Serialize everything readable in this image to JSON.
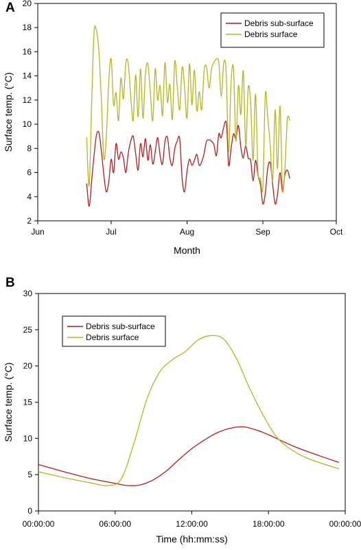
{
  "chart_data": [
    {
      "panel": "A",
      "type": "line",
      "xlabel": "Month",
      "ylabel": "Surface temp. (°C)",
      "x_tick_labels": [
        "Jun",
        "Jul",
        "Aug",
        "Sep",
        "Oct"
      ],
      "x_ticks": [
        "2010-06-01",
        "2010-07-01",
        "2010-08-01",
        "2010-09-01",
        "2010-10-01"
      ],
      "xlim": [
        "2010-06-01",
        "2010-10-01"
      ],
      "ylim": [
        2,
        20
      ],
      "y_ticks": [
        2,
        4,
        6,
        8,
        10,
        12,
        14,
        16,
        18,
        20
      ],
      "grid": false,
      "legend_position": "top-right",
      "series": [
        {
          "name": "Debris sub-surface",
          "color": "#b01c1c",
          "points": [
            [
              "2010-06-21",
              5.1
            ],
            [
              "2010-06-22",
              3.2
            ],
            [
              "2010-06-23",
              5.2
            ],
            [
              "2010-06-24",
              7.4
            ],
            [
              "2010-06-25",
              9.1
            ],
            [
              "2010-06-26",
              9.3
            ],
            [
              "2010-06-27",
              7.8
            ],
            [
              "2010-06-28",
              5.8
            ],
            [
              "2010-06-29",
              4.4
            ],
            [
              "2010-06-30",
              5.2
            ],
            [
              "2010-07-01",
              7.1
            ],
            [
              "2010-07-02",
              6.0
            ],
            [
              "2010-07-03",
              8.4
            ],
            [
              "2010-07-04",
              7.1
            ],
            [
              "2010-07-05",
              7.7
            ],
            [
              "2010-07-06",
              7.2
            ],
            [
              "2010-07-07",
              6.0
            ],
            [
              "2010-07-08",
              7.6
            ],
            [
              "2010-07-09",
              8.6
            ],
            [
              "2010-07-10",
              9.0
            ],
            [
              "2010-07-11",
              7.6
            ],
            [
              "2010-07-12",
              6.2
            ],
            [
              "2010-07-13",
              8.4
            ],
            [
              "2010-07-14",
              7.3
            ],
            [
              "2010-07-15",
              8.8
            ],
            [
              "2010-07-16",
              7.0
            ],
            [
              "2010-07-17",
              8.3
            ],
            [
              "2010-07-18",
              6.7
            ],
            [
              "2010-07-19",
              7.7
            ],
            [
              "2010-07-20",
              8.9
            ],
            [
              "2010-07-21",
              7.4
            ],
            [
              "2010-07-22",
              6.7
            ],
            [
              "2010-07-23",
              8.6
            ],
            [
              "2010-07-24",
              8.9
            ],
            [
              "2010-07-25",
              7.2
            ],
            [
              "2010-07-26",
              6.6
            ],
            [
              "2010-07-27",
              8.0
            ],
            [
              "2010-07-28",
              8.6
            ],
            [
              "2010-07-29",
              8.8
            ],
            [
              "2010-07-30",
              5.5
            ],
            [
              "2010-07-31",
              4.4
            ],
            [
              "2010-08-01",
              6.1
            ],
            [
              "2010-08-02",
              7.1
            ],
            [
              "2010-08-03",
              6.6
            ],
            [
              "2010-08-04",
              7.0
            ],
            [
              "2010-08-05",
              7.5
            ],
            [
              "2010-08-06",
              6.6
            ],
            [
              "2010-08-07",
              6.9
            ],
            [
              "2010-08-08",
              7.6
            ],
            [
              "2010-08-09",
              8.6
            ],
            [
              "2010-08-10",
              8.7
            ],
            [
              "2010-08-11",
              8.6
            ],
            [
              "2010-08-12",
              8.3
            ],
            [
              "2010-08-13",
              7.4
            ],
            [
              "2010-08-14",
              9.2
            ],
            [
              "2010-08-15",
              8.9
            ],
            [
              "2010-08-17",
              10.2
            ],
            [
              "2010-08-18",
              6.6
            ],
            [
              "2010-08-19",
              8.0
            ],
            [
              "2010-08-20",
              9.2
            ],
            [
              "2010-08-21",
              8.8
            ],
            [
              "2010-08-22",
              9.9
            ],
            [
              "2010-08-23",
              8.1
            ],
            [
              "2010-08-24",
              7.2
            ],
            [
              "2010-08-25",
              8.2
            ],
            [
              "2010-08-26",
              7.2
            ],
            [
              "2010-08-27",
              7.0
            ],
            [
              "2010-08-28",
              5.3
            ],
            [
              "2010-08-29",
              7.0
            ],
            [
              "2010-08-30",
              5.8
            ],
            [
              "2010-08-31",
              5.0
            ],
            [
              "2010-09-01",
              3.4
            ],
            [
              "2010-09-02",
              4.3
            ],
            [
              "2010-09-03",
              6.4
            ],
            [
              "2010-09-04",
              6.8
            ],
            [
              "2010-09-05",
              5.0
            ],
            [
              "2010-09-06",
              3.4
            ],
            [
              "2010-09-07",
              4.2
            ],
            [
              "2010-09-08",
              6.0
            ],
            [
              "2010-09-09",
              4.4
            ],
            [
              "2010-09-10",
              5.8
            ],
            [
              "2010-09-11",
              6.2
            ],
            [
              "2010-09-12",
              5.5
            ]
          ]
        },
        {
          "name": "Debris surface",
          "color": "#b5b51f",
          "points": [
            [
              "2010-06-21",
              8.9
            ],
            [
              "2010-06-22",
              4.9
            ],
            [
              "2010-06-23",
              11.5
            ],
            [
              "2010-06-24",
              17.6
            ],
            [
              "2010-06-25",
              17.7
            ],
            [
              "2010-06-26",
              16.0
            ],
            [
              "2010-06-27",
              12.0
            ],
            [
              "2010-06-28",
              7.2
            ],
            [
              "2010-06-29",
              8.8
            ],
            [
              "2010-06-30",
              13.5
            ],
            [
              "2010-07-01",
              15.4
            ],
            [
              "2010-07-02",
              11.6
            ],
            [
              "2010-07-03",
              12.6
            ],
            [
              "2010-07-04",
              10.3
            ],
            [
              "2010-07-05",
              13.8
            ],
            [
              "2010-07-06",
              12.1
            ],
            [
              "2010-07-07",
              15.1
            ],
            [
              "2010-07-08",
              15.0
            ],
            [
              "2010-07-09",
              12.3
            ],
            [
              "2010-07-10",
              10.3
            ],
            [
              "2010-07-11",
              14.1
            ],
            [
              "2010-07-12",
              10.6
            ],
            [
              "2010-07-13",
              14.6
            ],
            [
              "2010-07-14",
              10.5
            ],
            [
              "2010-07-15",
              14.2
            ],
            [
              "2010-07-16",
              15.0
            ],
            [
              "2010-07-17",
              12.7
            ],
            [
              "2010-07-18",
              10.3
            ],
            [
              "2010-07-19",
              14.6
            ],
            [
              "2010-07-20",
              12.0
            ],
            [
              "2010-07-21",
              13.2
            ],
            [
              "2010-07-22",
              10.7
            ],
            [
              "2010-07-23",
              15.1
            ],
            [
              "2010-07-24",
              11.8
            ],
            [
              "2010-07-25",
              13.3
            ],
            [
              "2010-07-26",
              10.4
            ],
            [
              "2010-07-27",
              15.2
            ],
            [
              "2010-07-28",
              13.2
            ],
            [
              "2010-07-29",
              11.2
            ],
            [
              "2010-07-30",
              14.7
            ],
            [
              "2010-07-31",
              13.1
            ],
            [
              "2010-08-01",
              10.5
            ],
            [
              "2010-08-02",
              15.0
            ],
            [
              "2010-08-03",
              11.6
            ],
            [
              "2010-08-04",
              14.5
            ],
            [
              "2010-08-05",
              11.1
            ],
            [
              "2010-08-06",
              12.7
            ],
            [
              "2010-08-07",
              11.2
            ],
            [
              "2010-08-08",
              14.5
            ],
            [
              "2010-08-09",
              14.7
            ],
            [
              "2010-08-10",
              13.0
            ],
            [
              "2010-08-11",
              14.6
            ],
            [
              "2010-08-12",
              15.1
            ],
            [
              "2010-08-13",
              15.4
            ],
            [
              "2010-08-14",
              15.1
            ],
            [
              "2010-08-15",
              12.3
            ],
            [
              "2010-08-16",
              15.1
            ],
            [
              "2010-08-17",
              14.3
            ],
            [
              "2010-08-18",
              7.7
            ],
            [
              "2010-08-19",
              13.5
            ],
            [
              "2010-08-20",
              14.6
            ],
            [
              "2010-08-21",
              8.6
            ],
            [
              "2010-08-22",
              13.2
            ],
            [
              "2010-08-23",
              10.8
            ],
            [
              "2010-08-24",
              14.4
            ],
            [
              "2010-08-25",
              8.2
            ],
            [
              "2010-08-26",
              13.0
            ],
            [
              "2010-08-27",
              11.8
            ],
            [
              "2010-08-28",
              7.0
            ],
            [
              "2010-08-29",
              12.5
            ],
            [
              "2010-08-30",
              6.0
            ],
            [
              "2010-08-31",
              5.5
            ],
            [
              "2010-09-01",
              4.8
            ],
            [
              "2010-09-02",
              12.5
            ],
            [
              "2010-09-03",
              10.5
            ],
            [
              "2010-09-04",
              8.3
            ],
            [
              "2010-09-05",
              5.3
            ],
            [
              "2010-09-06",
              11.2
            ],
            [
              "2010-09-07",
              6.3
            ],
            [
              "2010-09-08",
              11.5
            ],
            [
              "2010-09-09",
              4.6
            ],
            [
              "2010-09-10",
              6.3
            ],
            [
              "2010-09-11",
              10.4
            ],
            [
              "2010-09-12",
              10.3
            ]
          ]
        }
      ]
    },
    {
      "panel": "B",
      "type": "line",
      "xlabel": "Time (hh:mm:ss)",
      "ylabel": "Surface temp. (°C)",
      "x_tick_labels": [
        "00:00:00",
        "06:00:00",
        "12:00:00",
        "18:00:00",
        "00:00:00"
      ],
      "x_ticks": [
        "00:00:00",
        "06:00:00",
        "12:00:00",
        "18:00:00",
        "24:00:00"
      ],
      "xlim": [
        "00:00:00",
        "24:00:00"
      ],
      "ylim": [
        0,
        30
      ],
      "y_ticks": [
        0,
        5,
        10,
        15,
        20,
        25,
        30
      ],
      "grid": false,
      "legend_position": "top-left",
      "series": [
        {
          "name": "Debris sub-surface",
          "color": "#b01c1c",
          "points": [
            [
              "00:00:00",
              6.4
            ],
            [
              "02:00:00",
              5.4
            ],
            [
              "04:00:00",
              4.5
            ],
            [
              "06:00:00",
              3.8
            ],
            [
              "07:00:00",
              3.5
            ],
            [
              "08:00:00",
              3.6
            ],
            [
              "09:00:00",
              4.3
            ],
            [
              "10:00:00",
              5.5
            ],
            [
              "11:00:00",
              7.1
            ],
            [
              "12:00:00",
              8.6
            ],
            [
              "13:00:00",
              9.8
            ],
            [
              "14:00:00",
              10.8
            ],
            [
              "15:00:00",
              11.4
            ],
            [
              "16:00:00",
              11.6
            ],
            [
              "17:00:00",
              11.2
            ],
            [
              "18:00:00",
              10.5
            ],
            [
              "20:00:00",
              8.9
            ],
            [
              "22:00:00",
              7.6
            ],
            [
              "23:30:00",
              6.7
            ]
          ]
        },
        {
          "name": "Debris surface",
          "color": "#b5b51f",
          "points": [
            [
              "00:00:00",
              5.4
            ],
            [
              "02:00:00",
              4.6
            ],
            [
              "04:00:00",
              3.9
            ],
            [
              "05:30:00",
              3.5
            ],
            [
              "06:30:00",
              4.5
            ],
            [
              "07:30:00",
              9.5
            ],
            [
              "08:30:00",
              15.5
            ],
            [
              "09:30:00",
              19.2
            ],
            [
              "10:30:00",
              20.9
            ],
            [
              "11:30:00",
              22.0
            ],
            [
              "12:30:00",
              23.6
            ],
            [
              "13:30:00",
              24.2
            ],
            [
              "14:30:00",
              23.7
            ],
            [
              "15:30:00",
              21.0
            ],
            [
              "16:30:00",
              17.0
            ],
            [
              "17:30:00",
              13.5
            ],
            [
              "18:30:00",
              10.5
            ],
            [
              "19:30:00",
              8.8
            ],
            [
              "21:00:00",
              7.3
            ],
            [
              "23:30:00",
              5.8
            ]
          ]
        }
      ]
    }
  ]
}
